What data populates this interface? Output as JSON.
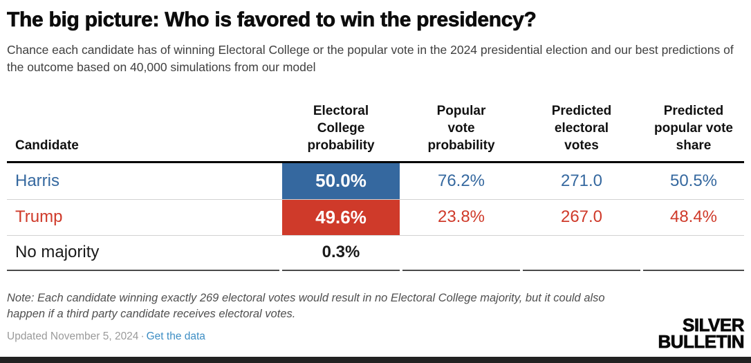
{
  "header": {
    "title": "The big picture: Who is favored to win the presidency?",
    "subtitle": "Chance each candidate has of winning Electoral College or the popular vote in the 2024 presidential election and our best predictions of the outcome based on 40,000 simulations from our model"
  },
  "table": {
    "columns": [
      "Candidate",
      "Electoral\nCollege\nprobability",
      "Popular\nvote\nprobability",
      "Predicted\nelectoral\nvotes",
      "Predicted\npopular vote\nshare"
    ],
    "rows": [
      {
        "candidate": "Harris",
        "ec_prob": "50.0%",
        "pv_prob": "76.2%",
        "pred_ev": "271.0",
        "pred_pv": "50.5%"
      },
      {
        "candidate": "Trump",
        "ec_prob": "49.6%",
        "pv_prob": "23.8%",
        "pred_ev": "267.0",
        "pred_pv": "48.4%"
      },
      {
        "candidate": "No majority",
        "ec_prob": "0.3%"
      }
    ]
  },
  "chart_data": {
    "type": "table",
    "title": "The big picture: Who is favored to win the presidency?",
    "subtitle": "Chance each candidate has of winning Electoral College or the popular vote in the 2024 presidential election and our best predictions of the outcome based on 40,000 simulations from our model",
    "columns": [
      "Candidate",
      "Electoral College probability",
      "Popular vote probability",
      "Predicted electoral votes",
      "Predicted popular vote share"
    ],
    "rows": [
      [
        "Harris",
        "50.0%",
        "76.2%",
        "271.0",
        "50.5%"
      ],
      [
        "Trump",
        "49.6%",
        "23.8%",
        "267.0",
        "48.4%"
      ],
      [
        "No majority",
        "0.3%",
        "",
        "",
        ""
      ]
    ],
    "colors": {
      "harris": "#35689f",
      "trump": "#cf3a2a"
    }
  },
  "footer": {
    "note": "Note: Each candidate winning exactly 269 electoral votes would result in no Electoral College majority, but it could also happen if a third party candidate receives electoral votes.",
    "updated": "Updated November 5, 2024",
    "separator": "·",
    "link_label": "Get the data",
    "logo_line1": "SILVER",
    "logo_line2": "BULLETIN"
  },
  "colors": {
    "harris_blue": "#35689f",
    "trump_red": "#cf3a2a",
    "link_blue": "#3e8ec4"
  }
}
